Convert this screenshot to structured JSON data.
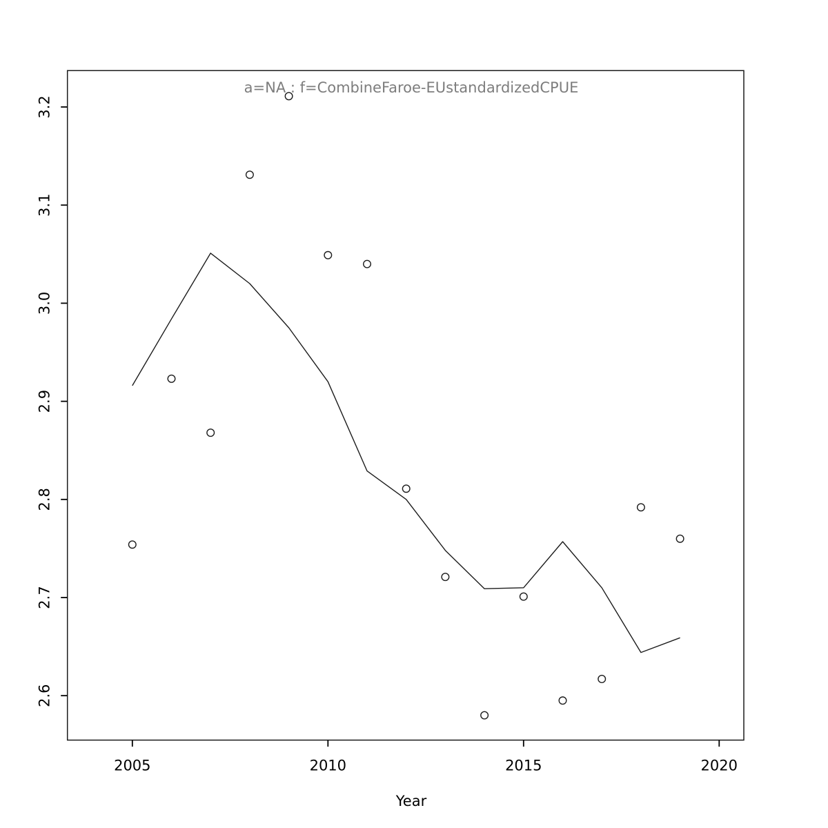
{
  "chart_data": {
    "type": "scatter",
    "title": "a=NA : f=CombineFaroe-EUstandardizedCPUE",
    "xlabel": "Year",
    "ylabel": "",
    "x": [
      2005,
      2006,
      2007,
      2008,
      2009,
      2010,
      2011,
      2012,
      2013,
      2014,
      2015,
      2016,
      2017,
      2018,
      2019
    ],
    "series": [
      {
        "name": "observed-points",
        "style": "open-circle",
        "values": [
          2.754,
          2.923,
          2.868,
          3.131,
          3.211,
          3.049,
          3.04,
          2.811,
          2.721,
          2.58,
          2.701,
          2.595,
          2.617,
          2.792,
          2.76
        ]
      },
      {
        "name": "fitted-line",
        "style": "line",
        "values": [
          2.916,
          2.984,
          3.051,
          3.02,
          2.975,
          2.92,
          2.829,
          2.8,
          2.748,
          2.709,
          2.71,
          2.757,
          2.71,
          2.644,
          2.659
        ]
      }
    ],
    "xticks": [
      2005,
      2010,
      2015,
      2020
    ],
    "xtick_labels": [
      "2005",
      "2010",
      "2015",
      "2020"
    ],
    "yticks": [
      2.6,
      2.7,
      2.8,
      2.9,
      3.0,
      3.1,
      3.2
    ],
    "ytick_labels": [
      "2.6",
      "2.7",
      "2.8",
      "2.9",
      "3.0",
      "3.1",
      "3.2"
    ],
    "xlim": [
      2003.34,
      2020.63
    ],
    "ylim": [
      2.5547,
      3.2371
    ],
    "grid": false,
    "legend": "none",
    "colors": {
      "title": "#7d7d7d",
      "axis": "#000000",
      "point": "#1c1c1c",
      "line": "#1c1c1c",
      "background": "#ffffff"
    }
  }
}
